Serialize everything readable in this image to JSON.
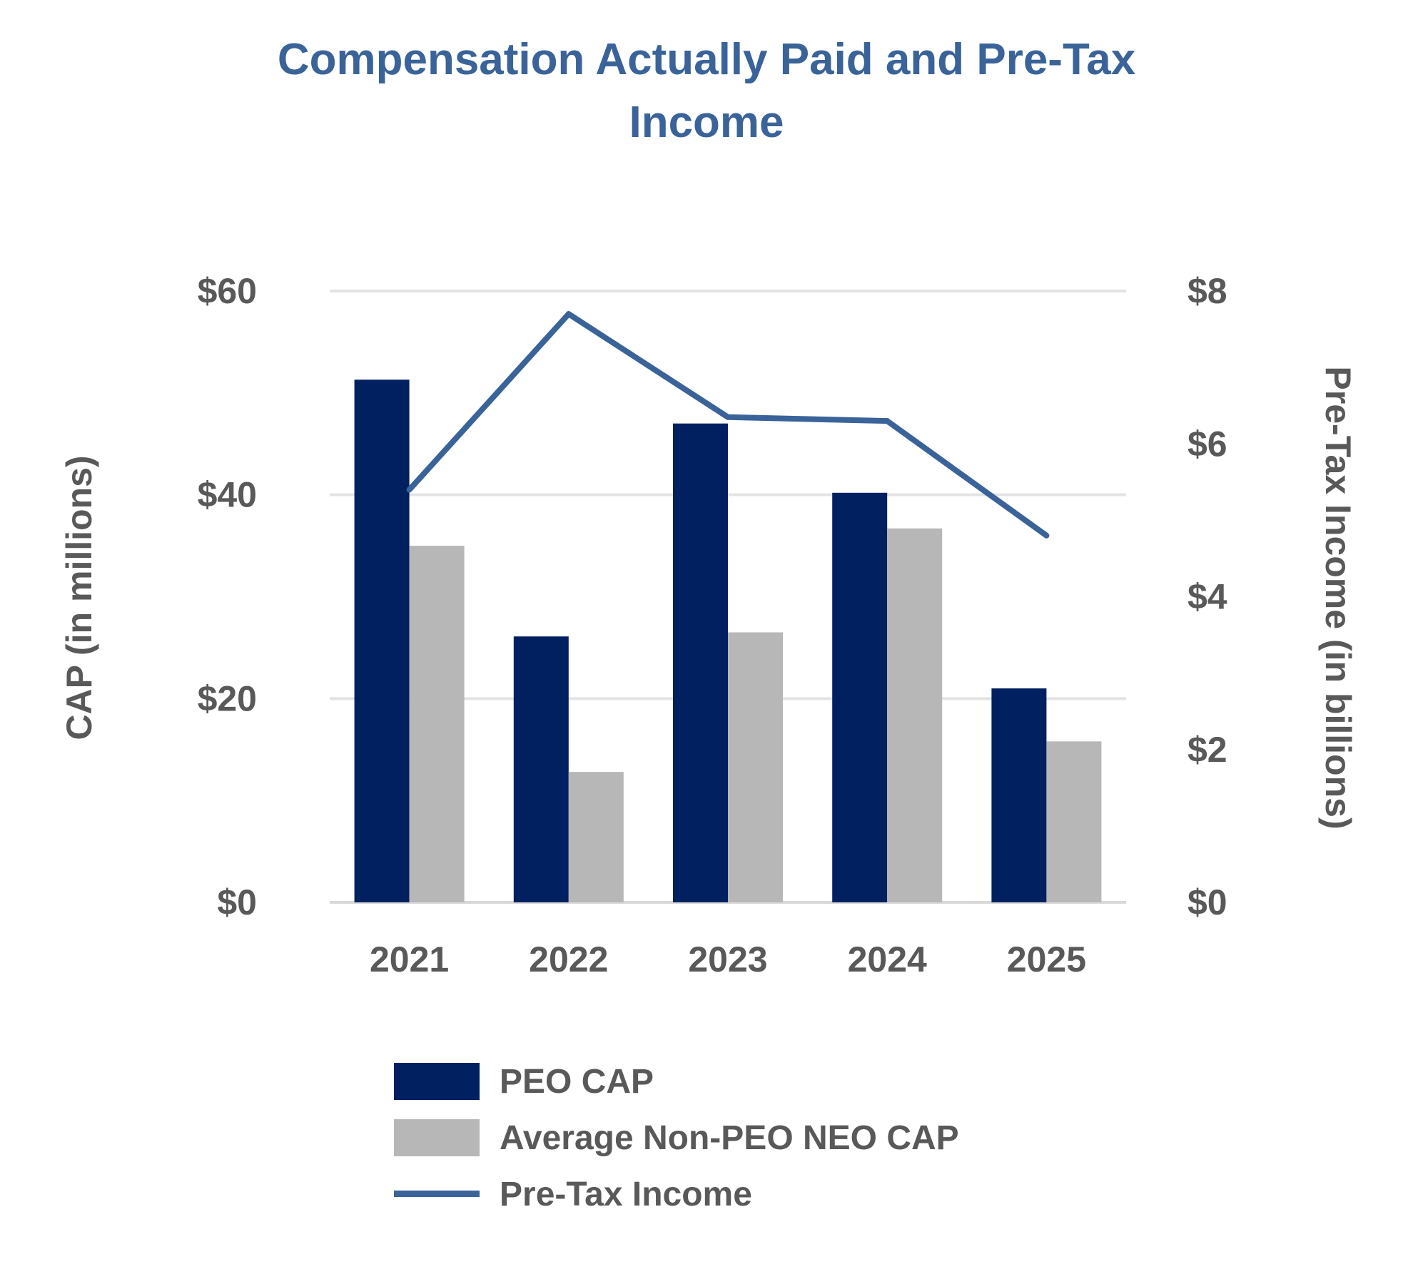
{
  "chart_data": {
    "type": "bar",
    "title_lines": [
      "Compensation Actually Paid and Pre-Tax",
      "Income"
    ],
    "categories": [
      "2021",
      "2022",
      "2023",
      "2024",
      "2025"
    ],
    "y_left": {
      "label": "CAP (in millions)",
      "lim": [
        0,
        60
      ],
      "ticks": [
        0,
        20,
        40,
        60
      ],
      "tick_labels": [
        "$0",
        "$20",
        "$40",
        "$60"
      ]
    },
    "y_right": {
      "label": "Pre-Tax Income (in billions)",
      "lim": [
        0,
        8
      ],
      "ticks": [
        0,
        2,
        4,
        6,
        8
      ],
      "tick_labels": [
        "$0",
        "$2",
        "$4",
        "$6",
        "$8"
      ]
    },
    "series": [
      {
        "name": "PEO CAP",
        "type": "bar",
        "axis": "left",
        "color": "#002060",
        "values": [
          51.3,
          26.1,
          47.0,
          40.2,
          21.0
        ]
      },
      {
        "name": "Average Non-PEO NEO CAP",
        "type": "bar",
        "axis": "left",
        "color": "#b7b7b7",
        "values": [
          35.0,
          12.8,
          26.5,
          36.7,
          15.8
        ]
      },
      {
        "name": "Pre-Tax Income",
        "type": "line",
        "axis": "right",
        "color": "#3a6399",
        "values": [
          5.4,
          7.7,
          6.35,
          6.3,
          4.8
        ]
      }
    ],
    "grid": true,
    "legend_position": "bottom"
  },
  "legend": {
    "items": [
      {
        "label": "PEO CAP",
        "color": "#002060",
        "kind": "box"
      },
      {
        "label": "Average Non-PEO NEO CAP",
        "color": "#b7b7b7",
        "kind": "box"
      },
      {
        "label": "Pre-Tax Income",
        "color": "#3a6399",
        "kind": "line"
      }
    ]
  }
}
